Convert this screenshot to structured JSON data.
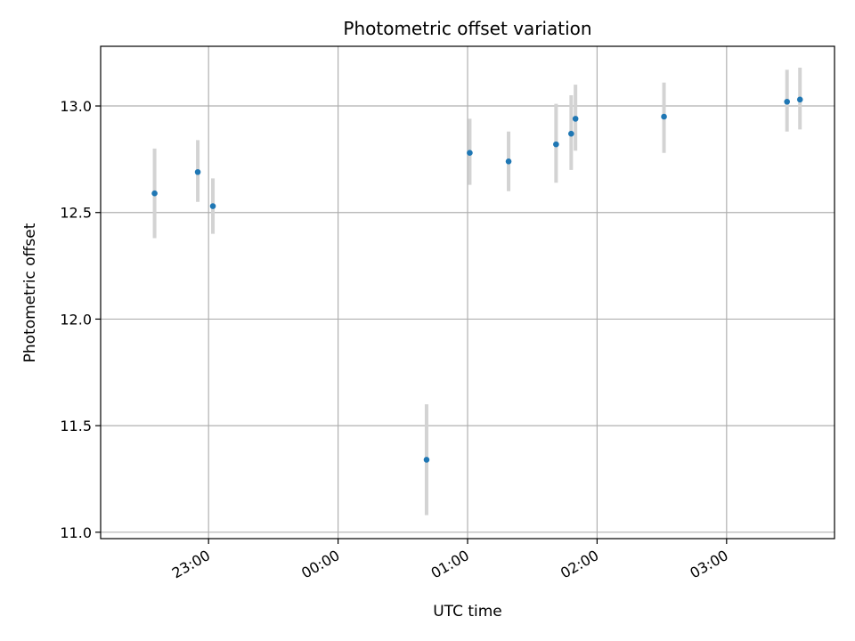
{
  "chart_data": {
    "type": "scatter",
    "title": "Photometric offset variation",
    "xlabel": "UTC time",
    "ylabel": "Photometric offset",
    "x_ticks": [
      "23:00",
      "00:00",
      "01:00",
      "02:00",
      "03:00"
    ],
    "y_ticks": [
      "11.0",
      "11.5",
      "12.0",
      "12.5",
      "13.0"
    ],
    "xlim": [
      "22:10",
      "03:50"
    ],
    "ylim": [
      10.97,
      13.28
    ],
    "grid": true,
    "points": [
      {
        "x": "22:35",
        "y": 12.59,
        "err_low": 12.38,
        "err_high": 12.8
      },
      {
        "x": "22:55",
        "y": 12.69,
        "err_low": 12.55,
        "err_high": 12.84
      },
      {
        "x": "23:02",
        "y": 12.53,
        "err_low": 12.4,
        "err_high": 12.66
      },
      {
        "x": "00:41",
        "y": 11.34,
        "err_low": 11.08,
        "err_high": 11.6
      },
      {
        "x": "01:01",
        "y": 12.78,
        "err_low": 12.63,
        "err_high": 12.94
      },
      {
        "x": "01:19",
        "y": 12.74,
        "err_low": 12.6,
        "err_high": 12.88
      },
      {
        "x": "01:41",
        "y": 12.82,
        "err_low": 12.64,
        "err_high": 13.01
      },
      {
        "x": "01:48",
        "y": 12.87,
        "err_low": 12.7,
        "err_high": 13.05
      },
      {
        "x": "01:50",
        "y": 12.94,
        "err_low": 12.79,
        "err_high": 13.1
      },
      {
        "x": "02:31",
        "y": 12.95,
        "err_low": 12.78,
        "err_high": 13.11
      },
      {
        "x": "03:28",
        "y": 13.02,
        "err_low": 12.88,
        "err_high": 13.17
      },
      {
        "x": "03:34",
        "y": 13.03,
        "err_low": 12.89,
        "err_high": 13.18
      }
    ],
    "point_color": "#1f77b4",
    "errorbar_color": "#d3d3d3",
    "grid_color": "#b0b0b0"
  }
}
